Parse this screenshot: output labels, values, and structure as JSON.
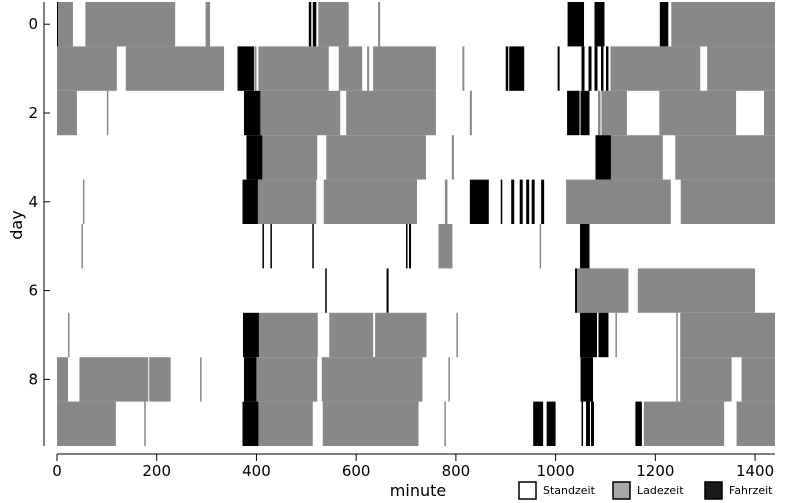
{
  "chart_data": {
    "type": "heatmap",
    "xlabel": "minute",
    "ylabel": "day",
    "xlim": [
      0,
      1440
    ],
    "ylim": [
      -0.5,
      9.5
    ],
    "x_ticks": [
      0,
      200,
      400,
      600,
      800,
      1000,
      1200,
      1400
    ],
    "x_tick_labels": [
      "0",
      "200",
      "400",
      "600",
      "800",
      "1000",
      "1200",
      "1400"
    ],
    "y_ticks": [
      0,
      2,
      4,
      6,
      8
    ],
    "y_tick_labels": [
      "0",
      "2",
      "4",
      "6",
      "8"
    ],
    "legend": {
      "placement": "bottom-right",
      "entries": [
        {
          "label": "Standzeit",
          "color": "#ffffff"
        },
        {
          "label": "Ladezeit",
          "color": "#a8a8a8"
        },
        {
          "label": "Fahrzeit",
          "color": "#1a1a1a"
        }
      ]
    },
    "state_colors": {
      "lade": "#888888",
      "fahr": "#000000"
    },
    "days": [
      {
        "day": 0,
        "segments": [
          [
            0,
            2,
            "fahr"
          ],
          [
            2,
            32,
            "lade"
          ],
          [
            57,
            237,
            "lade"
          ],
          [
            298,
            307,
            "lade"
          ],
          [
            505,
            510,
            "fahr"
          ],
          [
            513,
            520,
            "fahr"
          ],
          [
            524,
            585,
            "lade"
          ],
          [
            644,
            648,
            "lade"
          ],
          [
            1024,
            1057,
            "fahr"
          ],
          [
            1078,
            1098,
            "fahr"
          ],
          [
            1209,
            1226,
            "fahr"
          ],
          [
            1232,
            1440,
            "lade"
          ]
        ]
      },
      {
        "day": 1,
        "segments": [
          [
            0,
            120,
            "lade"
          ],
          [
            138,
            335,
            "lade"
          ],
          [
            362,
            395,
            "fahr"
          ],
          [
            396,
            400,
            "lade"
          ],
          [
            404,
            545,
            "lade"
          ],
          [
            565,
            612,
            "lade"
          ],
          [
            622,
            626,
            "lade"
          ],
          [
            634,
            760,
            "lade"
          ],
          [
            813,
            817,
            "lade"
          ],
          [
            900,
            905,
            "fahr"
          ],
          [
            907,
            937,
            "fahr"
          ],
          [
            1004,
            1008,
            "fahr"
          ],
          [
            1052,
            1058,
            "fahr"
          ],
          [
            1066,
            1072,
            "fahr"
          ],
          [
            1078,
            1084,
            "fahr"
          ],
          [
            1091,
            1096,
            "fahr"
          ],
          [
            1101,
            1106,
            "fahr"
          ],
          [
            1110,
            1290,
            "lade"
          ],
          [
            1304,
            1440,
            "lade"
          ]
        ]
      },
      {
        "day": 2,
        "segments": [
          [
            0,
            40,
            "lade"
          ],
          [
            100,
            103,
            "lade"
          ],
          [
            375,
            408,
            "fahr"
          ],
          [
            408,
            568,
            "lade"
          ],
          [
            580,
            760,
            "lade"
          ],
          [
            828,
            832,
            "lade"
          ],
          [
            1023,
            1048,
            "fahr"
          ],
          [
            1050,
            1068,
            "fahr"
          ],
          [
            1085,
            1090,
            "lade"
          ],
          [
            1092,
            1143,
            "lade"
          ],
          [
            1208,
            1362,
            "lade"
          ],
          [
            1418,
            1440,
            "lade"
          ]
        ]
      },
      {
        "day": 3,
        "segments": [
          [
            380,
            412,
            "fahr"
          ],
          [
            412,
            522,
            "lade"
          ],
          [
            540,
            740,
            "lade"
          ],
          [
            792,
            796,
            "lade"
          ],
          [
            1080,
            1111,
            "fahr"
          ],
          [
            1111,
            1215,
            "lade"
          ],
          [
            1240,
            1440,
            "lade"
          ]
        ]
      },
      {
        "day": 4,
        "segments": [
          [
            52,
            55,
            "lade"
          ],
          [
            372,
            403,
            "fahr"
          ],
          [
            403,
            520,
            "lade"
          ],
          [
            535,
            722,
            "lade"
          ],
          [
            778,
            783,
            "lade"
          ],
          [
            828,
            866,
            "fahr"
          ],
          [
            890,
            893,
            "fahr"
          ],
          [
            911,
            917,
            "fahr"
          ],
          [
            928,
            934,
            "fahr"
          ],
          [
            941,
            947,
            "fahr"
          ],
          [
            952,
            958,
            "fahr"
          ],
          [
            971,
            977,
            "fahr"
          ],
          [
            1021,
            1231,
            "lade"
          ],
          [
            1251,
            1440,
            "lade"
          ]
        ]
      },
      {
        "day": 5,
        "segments": [
          [
            49,
            52,
            "lade"
          ],
          [
            412,
            415,
            "fahr"
          ],
          [
            428,
            431,
            "fahr"
          ],
          [
            512,
            515,
            "fahr"
          ],
          [
            700,
            703,
            "fahr"
          ],
          [
            706,
            710,
            "fahr"
          ],
          [
            765,
            793,
            "lade"
          ],
          [
            968,
            971,
            "lade"
          ],
          [
            1049,
            1068,
            "fahr"
          ]
        ]
      },
      {
        "day": 6,
        "segments": [
          [
            538,
            541,
            "fahr"
          ],
          [
            661,
            665,
            "fahr"
          ],
          [
            1039,
            1043,
            "fahr"
          ],
          [
            1043,
            1146,
            "lade"
          ],
          [
            1165,
            1400,
            "lade"
          ]
        ]
      },
      {
        "day": 7,
        "segments": [
          [
            22,
            25,
            "lade"
          ],
          [
            373,
            405,
            "fahr"
          ],
          [
            405,
            523,
            "lade"
          ],
          [
            546,
            634,
            "lade"
          ],
          [
            638,
            741,
            "lade"
          ],
          [
            801,
            804,
            "lade"
          ],
          [
            1049,
            1083,
            "fahr"
          ],
          [
            1086,
            1106,
            "fahr"
          ],
          [
            1120,
            1123,
            "lade"
          ],
          [
            1242,
            1245,
            "lade"
          ],
          [
            1250,
            1440,
            "lade"
          ]
        ]
      },
      {
        "day": 8,
        "segments": [
          [
            0,
            22,
            "lade"
          ],
          [
            45,
            183,
            "lade"
          ],
          [
            185,
            228,
            "lade"
          ],
          [
            287,
            290,
            "lade"
          ],
          [
            375,
            400,
            "fahr"
          ],
          [
            400,
            522,
            "lade"
          ],
          [
            531,
            733,
            "lade"
          ],
          [
            785,
            788,
            "lade"
          ],
          [
            1050,
            1075,
            "fahr"
          ],
          [
            1242,
            1245,
            "lade"
          ],
          [
            1250,
            1353,
            "lade"
          ],
          [
            1373,
            1440,
            "lade"
          ]
        ]
      },
      {
        "day": 9,
        "segments": [
          [
            0,
            118,
            "lade"
          ],
          [
            175,
            178,
            "lade"
          ],
          [
            372,
            404,
            "fahr"
          ],
          [
            404,
            513,
            "lade"
          ],
          [
            533,
            725,
            "lade"
          ],
          [
            777,
            780,
            "lade"
          ],
          [
            955,
            975,
            "fahr"
          ],
          [
            982,
            1000,
            "fahr"
          ],
          [
            1052,
            1055,
            "fahr"
          ],
          [
            1061,
            1069,
            "fahr"
          ],
          [
            1071,
            1077,
            "fahr"
          ],
          [
            1160,
            1173,
            "fahr"
          ],
          [
            1177,
            1338,
            "lade"
          ],
          [
            1363,
            1440,
            "lade"
          ]
        ]
      }
    ]
  }
}
